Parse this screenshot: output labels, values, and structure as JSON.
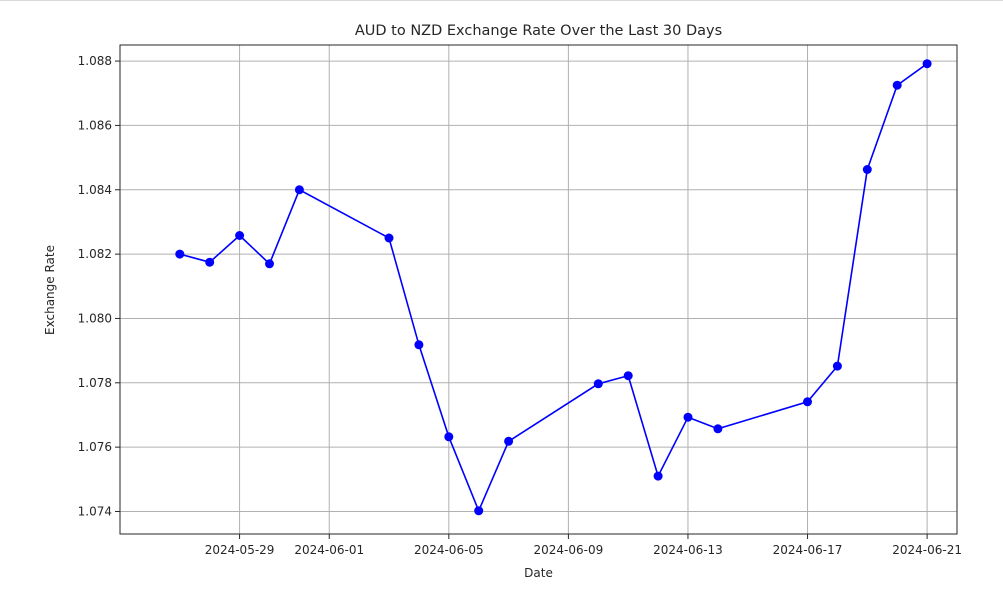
{
  "chart_data": {
    "type": "line",
    "title": "AUD to NZD Exchange Rate Over the Last 30 Days",
    "xlabel": "Date",
    "ylabel": "Exchange Rate",
    "grid": true,
    "line_color": "#0000ff",
    "marker": "circle",
    "xlim": [
      "2024-05-25",
      "2024-06-22"
    ],
    "ylim": [
      1.0733,
      1.0885
    ],
    "x_ticks": [
      "2024-05-29",
      "2024-06-01",
      "2024-06-05",
      "2024-06-09",
      "2024-06-13",
      "2024-06-17",
      "2024-06-21"
    ],
    "y_ticks": [
      1.074,
      1.076,
      1.078,
      1.08,
      1.082,
      1.084,
      1.086,
      1.088
    ],
    "series": [
      {
        "x": [
          "2024-05-27",
          "2024-05-28",
          "2024-05-29",
          "2024-05-30",
          "2024-05-31",
          "2024-06-03",
          "2024-06-04",
          "2024-06-05",
          "2024-06-06",
          "2024-06-07",
          "2024-06-10",
          "2024-06-11",
          "2024-06-12",
          "2024-06-13",
          "2024-06-14",
          "2024-06-17",
          "2024-06-18",
          "2024-06-19",
          "2024-06-20",
          "2024-06-21"
        ],
        "values": [
          1.082,
          1.08175,
          1.08258,
          1.0817,
          1.084,
          1.0825,
          1.07918,
          1.07632,
          1.07402,
          1.07618,
          1.07797,
          1.07822,
          1.0751,
          1.07693,
          1.07657,
          1.07741,
          1.07852,
          1.08463,
          1.08725,
          1.08792
        ]
      }
    ]
  }
}
